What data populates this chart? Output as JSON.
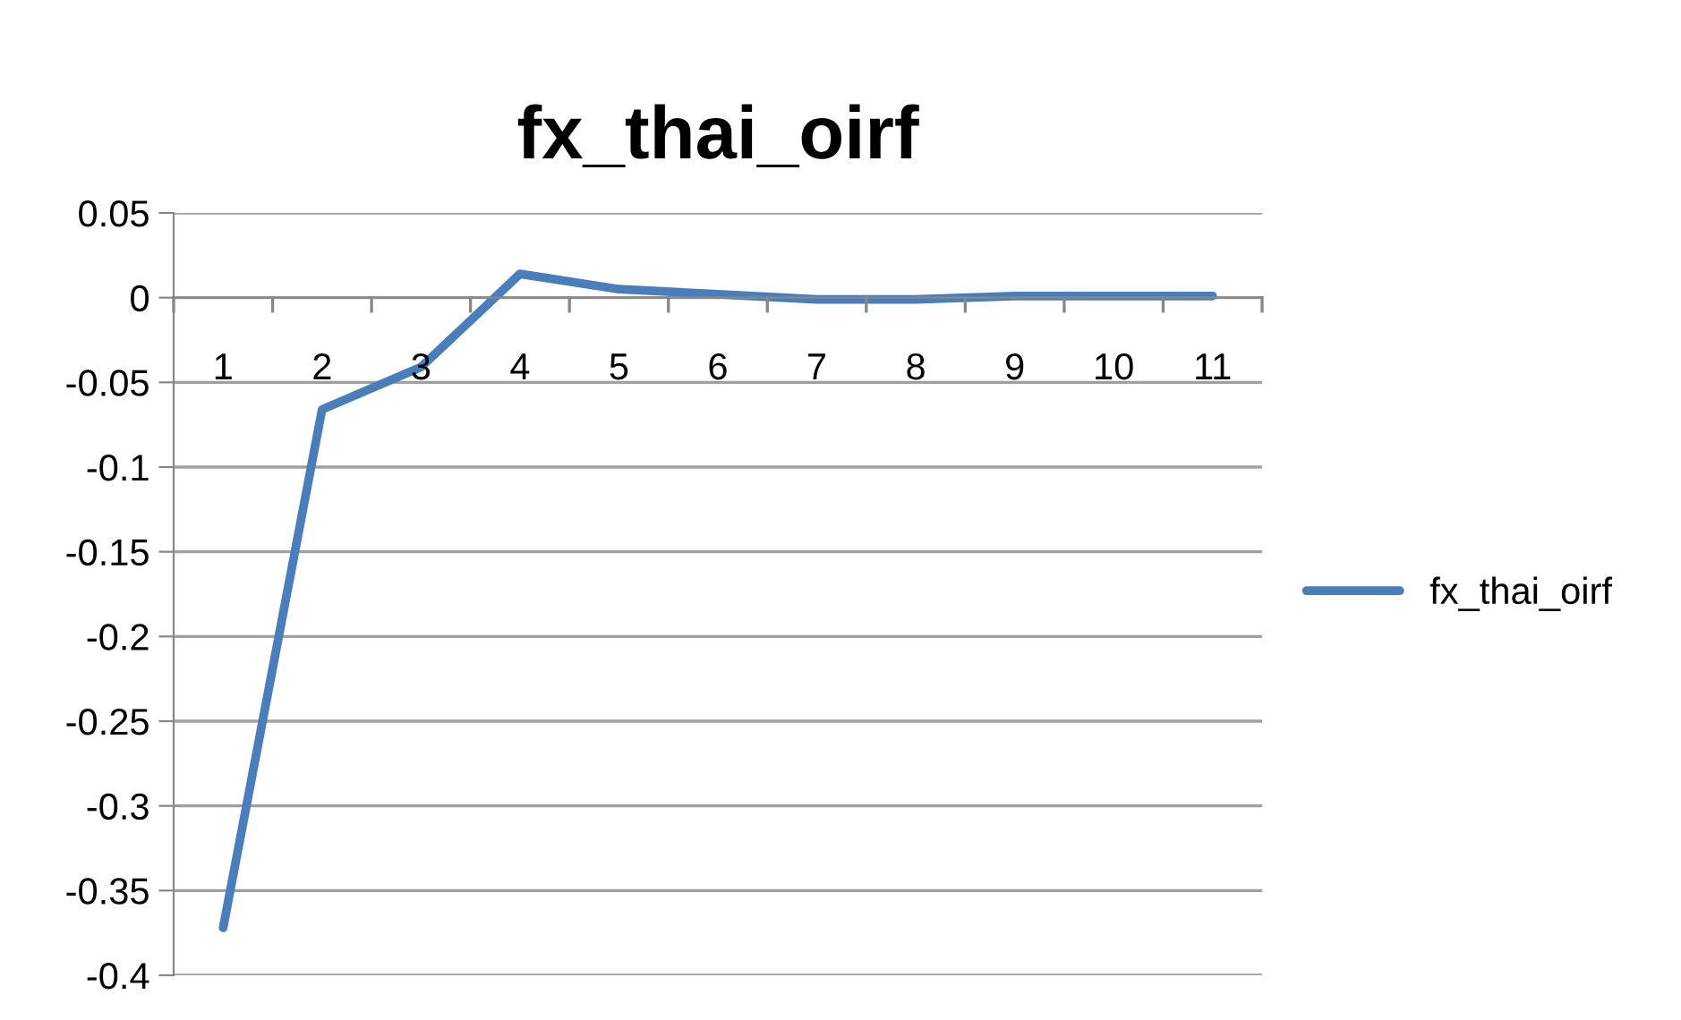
{
  "chart_data": {
    "type": "line",
    "title": "fx_thai_oirf",
    "categories": [
      "1",
      "2",
      "3",
      "4",
      "5",
      "6",
      "7",
      "8",
      "9",
      "10",
      "11"
    ],
    "series": [
      {
        "name": "fx_thai_oirf",
        "color": "#4a7ebb",
        "values": [
          -0.372,
          -0.066,
          -0.041,
          0.014,
          0.005,
          0.002,
          -0.001,
          -0.001,
          0.001,
          0.001,
          0.001
        ]
      }
    ],
    "ylim": [
      -0.4,
      0.05
    ],
    "yticks": [
      {
        "value": 0.05,
        "label": "0.05"
      },
      {
        "value": 0,
        "label": "0"
      },
      {
        "value": -0.05,
        "label": "-0.05"
      },
      {
        "value": -0.1,
        "label": "-0.1"
      },
      {
        "value": -0.15,
        "label": "-0.15"
      },
      {
        "value": -0.2,
        "label": "-0.2"
      },
      {
        "value": -0.25,
        "label": "-0.25"
      },
      {
        "value": -0.3,
        "label": "-0.3"
      },
      {
        "value": -0.35,
        "label": "-0.35"
      },
      {
        "value": -0.4,
        "label": "-0.4"
      }
    ],
    "grid": "y",
    "legend": "right",
    "marker": "none",
    "line_style": "solid"
  }
}
